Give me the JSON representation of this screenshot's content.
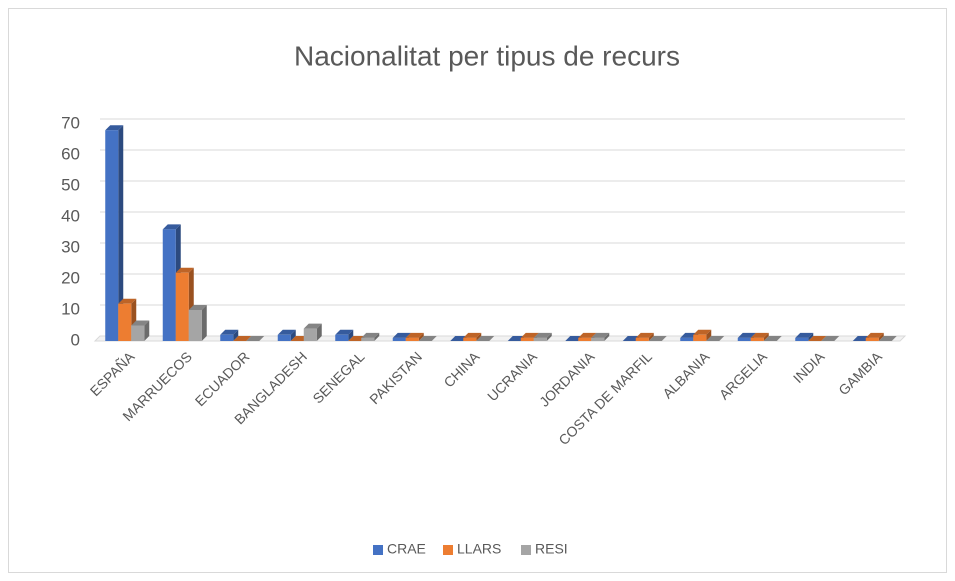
{
  "chart_data": {
    "type": "bar",
    "title": "Nacionalitat per tipus de recurs",
    "categories": [
      "ESPAÑA",
      "MARRUECOS",
      "ECUADOR",
      "BANGLADESH",
      "SENEGAL",
      "PAKISTAN",
      "CHINA",
      "UCRANIA",
      "JORDANIA",
      "COSTA DE MARFIL",
      "ALBANIA",
      "ARGELIA",
      "INDIA",
      "GAMBIA"
    ],
    "series": [
      {
        "name": "CRAE",
        "color": "#4472c4",
        "values": [
          68,
          36,
          2,
          2,
          2,
          1,
          0,
          0,
          0,
          0,
          1,
          1,
          1,
          0
        ]
      },
      {
        "name": "LLARS",
        "color": "#ed7d31",
        "values": [
          12,
          22,
          0,
          0,
          0,
          1,
          1,
          1,
          1,
          1,
          2,
          1,
          0,
          1
        ]
      },
      {
        "name": "RESI",
        "color": "#a5a5a5",
        "values": [
          5,
          10,
          0,
          4,
          1,
          0,
          0,
          1,
          1,
          0,
          0,
          0,
          0,
          0
        ]
      }
    ],
    "ylim": [
      0,
      70
    ],
    "yticks": [
      0,
      10,
      20,
      30,
      40,
      50,
      60,
      70
    ],
    "grid": true,
    "legend": "bottom"
  }
}
